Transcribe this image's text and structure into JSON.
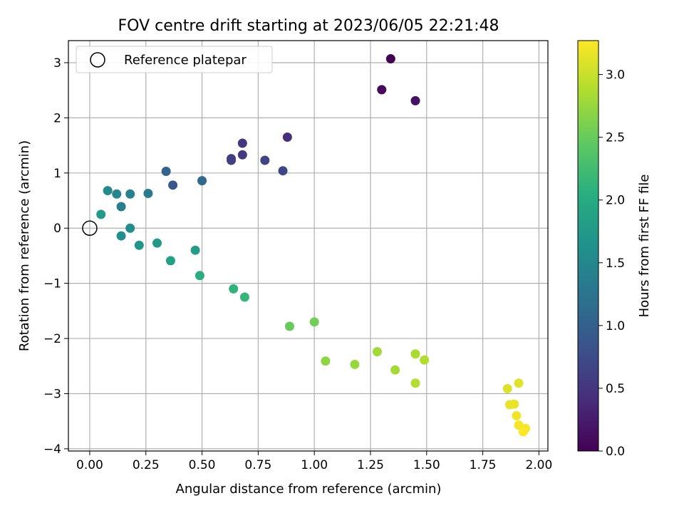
{
  "chart_data": {
    "type": "scatter",
    "title": "FOV centre drift starting at 2023/06/05 22:21:48",
    "xlabel": "Angular distance from reference (arcmin)",
    "ylabel": "Rotation from reference (arcmin)",
    "xlim": [
      -0.095,
      2.04
    ],
    "ylim": [
      -4.04,
      3.4
    ],
    "xticks": [
      "0.00",
      "0.25",
      "0.50",
      "0.75",
      "1.00",
      "1.25",
      "1.50",
      "1.75",
      "2.00"
    ],
    "xtick_values": [
      0,
      0.25,
      0.5,
      0.75,
      1.0,
      1.25,
      1.5,
      1.75,
      2.0
    ],
    "yticks": [
      "−4",
      "−3",
      "−2",
      "−1",
      "0",
      "1",
      "2",
      "3"
    ],
    "ytick_values": [
      -4,
      -3,
      -2,
      -1,
      0,
      1,
      2,
      3
    ],
    "grid": true,
    "legend": {
      "placement": "top-left",
      "entries": [
        "Reference platepar"
      ]
    },
    "reference_point": {
      "x": 0,
      "y": 0
    },
    "colorbar": {
      "label": "Hours from first FF file",
      "range": [
        0,
        3.27
      ],
      "ticks": [
        "0.0",
        "0.5",
        "1.0",
        "1.5",
        "2.0",
        "2.5",
        "3.0"
      ],
      "tick_values": [
        0,
        0.5,
        1.0,
        1.5,
        2.0,
        2.5,
        3.0
      ],
      "colormap": "viridis"
    },
    "points": [
      {
        "x": 1.34,
        "y": 3.07,
        "hours": 0.0
      },
      {
        "x": 1.3,
        "y": 2.51,
        "hours": 0.08
      },
      {
        "x": 1.45,
        "y": 2.31,
        "hours": 0.16
      },
      {
        "x": 0.88,
        "y": 1.65,
        "hours": 0.42
      },
      {
        "x": 0.68,
        "y": 1.54,
        "hours": 0.5
      },
      {
        "x": 0.68,
        "y": 1.33,
        "hours": 0.55
      },
      {
        "x": 0.63,
        "y": 1.26,
        "hours": 0.6
      },
      {
        "x": 0.63,
        "y": 1.23,
        "hours": 0.62
      },
      {
        "x": 0.78,
        "y": 1.23,
        "hours": 0.65
      },
      {
        "x": 0.86,
        "y": 1.04,
        "hours": 0.68
      },
      {
        "x": 0.37,
        "y": 0.78,
        "hours": 0.9
      },
      {
        "x": 0.34,
        "y": 1.03,
        "hours": 1.05
      },
      {
        "x": 0.5,
        "y": 0.86,
        "hours": 1.1
      },
      {
        "x": 0.26,
        "y": 0.63,
        "hours": 1.35
      },
      {
        "x": 0.14,
        "y": 0.39,
        "hours": 1.4
      },
      {
        "x": 0.18,
        "y": 0.62,
        "hours": 1.45
      },
      {
        "x": 0.12,
        "y": 0.62,
        "hours": 1.5
      },
      {
        "x": 0.08,
        "y": 0.68,
        "hours": 1.55
      },
      {
        "x": 0.18,
        "y": 0.0,
        "hours": 1.58
      },
      {
        "x": 0.14,
        "y": -0.14,
        "hours": 1.6
      },
      {
        "x": 0.05,
        "y": 0.25,
        "hours": 1.75
      },
      {
        "x": 0.22,
        "y": -0.31,
        "hours": 1.7
      },
      {
        "x": 0.3,
        "y": -0.27,
        "hours": 1.75
      },
      {
        "x": 0.47,
        "y": -0.4,
        "hours": 1.8
      },
      {
        "x": 0.36,
        "y": -0.59,
        "hours": 1.85
      },
      {
        "x": 0.49,
        "y": -0.86,
        "hours": 2.05
      },
      {
        "x": 0.64,
        "y": -1.1,
        "hours": 2.1
      },
      {
        "x": 0.69,
        "y": -1.25,
        "hours": 2.15
      },
      {
        "x": 0.89,
        "y": -1.78,
        "hours": 2.5
      },
      {
        "x": 1.0,
        "y": -1.7,
        "hours": 2.55
      },
      {
        "x": 1.05,
        "y": -2.41,
        "hours": 2.7
      },
      {
        "x": 1.18,
        "y": -2.47,
        "hours": 2.75
      },
      {
        "x": 1.28,
        "y": -2.24,
        "hours": 2.8
      },
      {
        "x": 1.36,
        "y": -2.57,
        "hours": 2.82
      },
      {
        "x": 1.45,
        "y": -2.28,
        "hours": 2.85
      },
      {
        "x": 1.49,
        "y": -2.39,
        "hours": 2.88
      },
      {
        "x": 1.45,
        "y": -2.81,
        "hours": 2.9
      },
      {
        "x": 1.86,
        "y": -2.91,
        "hours": 3.1
      },
      {
        "x": 1.91,
        "y": -2.81,
        "hours": 3.12
      },
      {
        "x": 1.87,
        "y": -3.2,
        "hours": 3.15
      },
      {
        "x": 1.89,
        "y": -3.19,
        "hours": 3.17
      },
      {
        "x": 1.9,
        "y": -3.4,
        "hours": 3.2
      },
      {
        "x": 1.91,
        "y": -3.57,
        "hours": 3.22
      },
      {
        "x": 1.94,
        "y": -3.63,
        "hours": 3.24
      },
      {
        "x": 1.93,
        "y": -3.69,
        "hours": 3.26
      }
    ]
  }
}
